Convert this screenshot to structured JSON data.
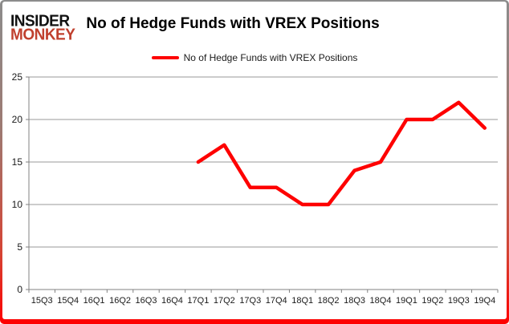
{
  "header": {
    "logo_line1": "INSIDER",
    "logo_line2": "MONKEY",
    "title": "No of Hedge Funds with VREX Positions"
  },
  "legend": {
    "label": "No of Hedge Funds with VREX Positions"
  },
  "colors": {
    "line": "#fe0000",
    "gridline": "#999999",
    "axis": "#808080",
    "tick_text": "#1a1a1a",
    "logo_black": "#111111",
    "logo_red": "#c0402e",
    "frame_top": "#8c8c8c",
    "frame_bottom": "#fe0000"
  },
  "chart_data": {
    "type": "line",
    "title": "No of Hedge Funds with VREX Positions",
    "categories": [
      "15Q3",
      "15Q4",
      "16Q1",
      "16Q2",
      "16Q3",
      "16Q4",
      "17Q1",
      "17Q2",
      "17Q3",
      "17Q4",
      "18Q1",
      "18Q2",
      "18Q3",
      "18Q4",
      "19Q1",
      "19Q2",
      "19Q3",
      "19Q4"
    ],
    "series": [
      {
        "name": "No of Hedge Funds with VREX Positions",
        "values": [
          null,
          null,
          null,
          null,
          null,
          null,
          15,
          17,
          12,
          12,
          10,
          10,
          14,
          15,
          20,
          20,
          22,
          19
        ]
      }
    ],
    "ylim": [
      0,
      25
    ],
    "yticks": [
      0,
      5,
      10,
      15,
      20,
      25
    ],
    "grid": true,
    "legend_position": "top"
  }
}
